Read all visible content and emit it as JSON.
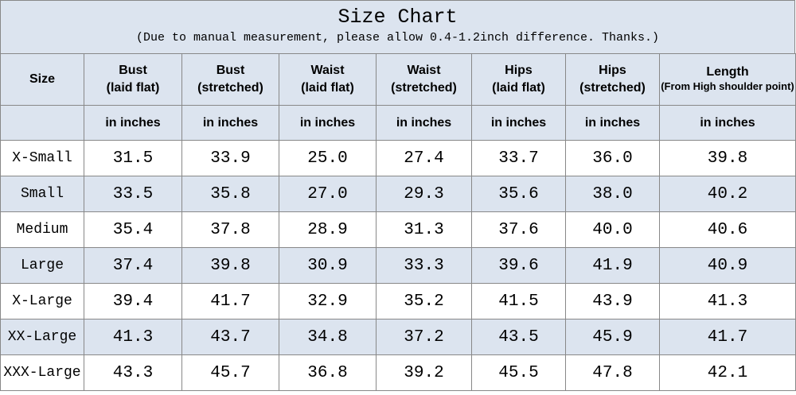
{
  "title": "Size Chart",
  "subtitle": "(Due to manual measurement, please allow 0.4-1.2inch difference. Thanks.)",
  "table": {
    "header": [
      [
        "Size"
      ],
      [
        "Bust",
        "(laid flat)"
      ],
      [
        "Bust",
        "(stretched)"
      ],
      [
        "Waist",
        "(laid flat)"
      ],
      [
        "Waist",
        "(stretched)"
      ],
      [
        "Hips",
        "(laid flat)"
      ],
      [
        "Hips",
        "(stretched)"
      ],
      [
        "Length",
        "(From High shoulder point)"
      ]
    ],
    "units": [
      "in inches",
      "in inches",
      "in inches",
      "in inches",
      "in inches",
      "in inches",
      "in inches"
    ],
    "rows": [
      [
        "X-Small",
        "31.5",
        "33.9",
        "25.0",
        "27.4",
        "33.7",
        "36.0",
        "39.8"
      ],
      [
        "Small",
        "33.5",
        "35.8",
        "27.0",
        "29.3",
        "35.6",
        "38.0",
        "40.2"
      ],
      [
        "Medium",
        "35.4",
        "37.8",
        "28.9",
        "31.3",
        "37.6",
        "40.0",
        "40.6"
      ],
      [
        "Large",
        "37.4",
        "39.8",
        "30.9",
        "33.3",
        "39.6",
        "41.9",
        "40.9"
      ],
      [
        "X-Large",
        "39.4",
        "41.7",
        "32.9",
        "35.2",
        "41.5",
        "43.9",
        "41.3"
      ],
      [
        "XX-Large",
        "41.3",
        "43.7",
        "34.8",
        "37.2",
        "43.5",
        "45.9",
        "41.7"
      ],
      [
        "XXX-Large",
        "43.3",
        "45.7",
        "36.8",
        "39.2",
        "45.5",
        "47.8",
        "42.1"
      ]
    ]
  }
}
